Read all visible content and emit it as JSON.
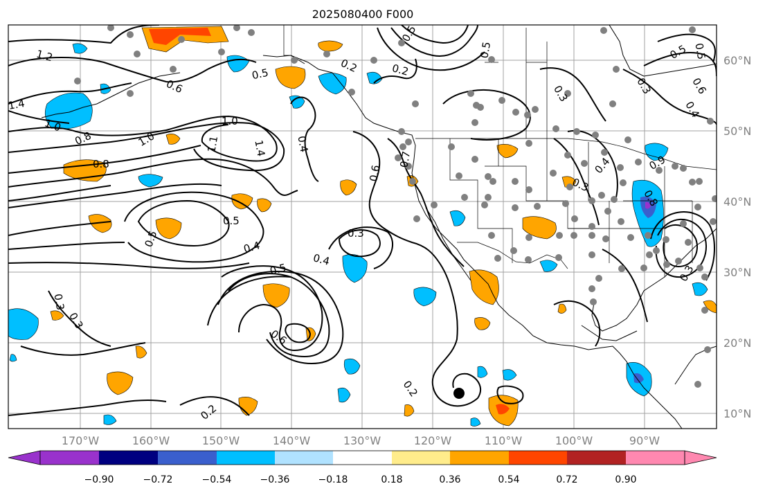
{
  "title": "2025080400 F000",
  "longitude_labels": [
    "170°W",
    "160°W",
    "150°W",
    "140°W",
    "130°W",
    "120°W",
    "110°W",
    "100°W",
    "90°W"
  ],
  "latitude_labels": [
    "60°N",
    "50°N",
    "40°N",
    "30°N",
    "20°N",
    "10°N"
  ],
  "colorbar": {
    "tick_labels": [
      "−0.90",
      "−0.72",
      "−0.54",
      "−0.36",
      "−0.18",
      "0.18",
      "0.36",
      "0.54",
      "0.72",
      "0.90"
    ],
    "colors": [
      "#9932cc",
      "#000080",
      "#3a5fcd",
      "#00bfff",
      "#b0e2ff",
      "#ffffff",
      "#ffec8b",
      "#ffa500",
      "#ff4500",
      "#b22222",
      "#ff88b0"
    ]
  },
  "contour_labels": [
    "1.2",
    "1.4",
    "1.0",
    "0.8",
    "1.0",
    "0.8",
    "1.0",
    "1.1",
    "1.4",
    "0.5",
    "0.6",
    "0.2",
    "0.2",
    "0.5",
    "0.5",
    "0.4",
    "0.6",
    "0.7",
    "0.5",
    "0.5",
    "0.4",
    "0.3",
    "0.5",
    "0.4",
    "0.6",
    "0.3",
    "0.3",
    "0.2",
    "0.2",
    "0.3",
    "0.4",
    "0.3",
    "0.8",
    "0.9",
    "0.5",
    "0.3",
    "0.6",
    "0.5",
    "0.4",
    "0.3"
  ],
  "colors": {
    "contour": "#000000",
    "grid": "#a0a0a0",
    "tick_text": "#808080",
    "station_dot": "#808080",
    "positive_fill": "#ffa500",
    "positive_core": "#ff4500",
    "negative_fill": "#00bfff",
    "negative_core": "#3a5fcd"
  }
}
